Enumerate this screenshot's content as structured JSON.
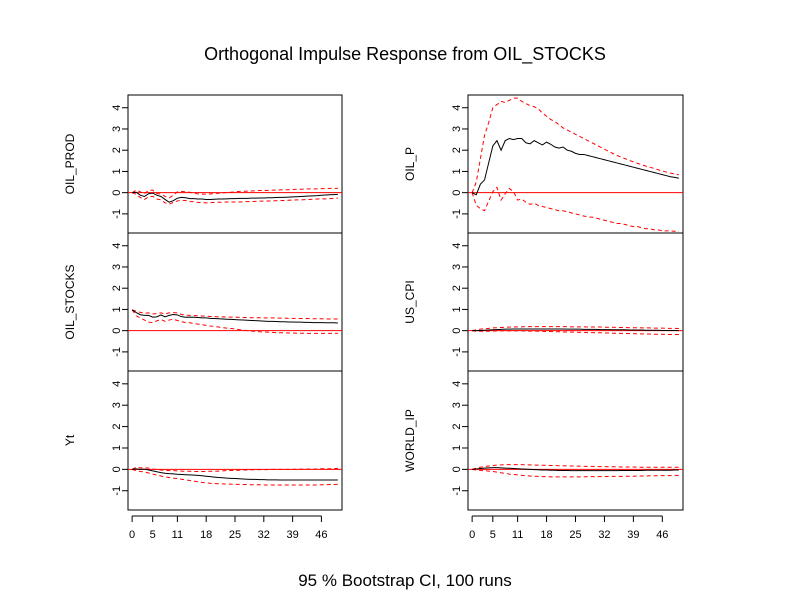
{
  "title": "Orthogonal Impulse Response from OIL_STOCKS",
  "subtitle": "95 % Bootstrap CI,  100 runs",
  "colors": {
    "ci": "#ff0000",
    "zero_line": "#ff0000",
    "response": "#000000",
    "frame": "#000000"
  },
  "chart_data": {
    "type": "line",
    "impulse": "OIL_STOCKS",
    "x": [
      0,
      1,
      2,
      3,
      4,
      5,
      6,
      7,
      8,
      9,
      10,
      11,
      12,
      13,
      14,
      15,
      16,
      17,
      18,
      19,
      20,
      21,
      22,
      23,
      24,
      25,
      26,
      27,
      28,
      29,
      30,
      31,
      32,
      33,
      34,
      35,
      36,
      37,
      38,
      39,
      40,
      41,
      42,
      43,
      44,
      45,
      46,
      47,
      48,
      49,
      50
    ],
    "x_ticks": [
      0,
      5,
      11,
      18,
      25,
      32,
      39,
      46
    ],
    "xlim": [
      -1.0,
      51.0
    ],
    "ylim": [
      -1.9,
      4.6
    ],
    "y_ticks": [
      -1,
      0,
      1,
      2,
      3,
      4
    ],
    "reference_line": 0,
    "panels": [
      {
        "name": "OIL_PROD",
        "response": [
          0,
          0.02,
          -0.12,
          -0.18,
          -0.05,
          -0.02,
          -0.12,
          -0.18,
          -0.32,
          -0.45,
          -0.38,
          -0.26,
          -0.22,
          -0.24,
          -0.28,
          -0.28,
          -0.3,
          -0.3,
          -0.32,
          -0.32,
          -0.31,
          -0.3,
          -0.3,
          -0.29,
          -0.28,
          -0.28,
          -0.27,
          -0.27,
          -0.27,
          -0.26,
          -0.26,
          -0.25,
          -0.25,
          -0.24,
          -0.24,
          -0.23,
          -0.22,
          -0.22,
          -0.21,
          -0.2,
          -0.19,
          -0.18,
          -0.17,
          -0.16,
          -0.15,
          -0.14,
          -0.12,
          -0.11,
          -0.1,
          -0.09,
          -0.08
        ],
        "lower": [
          0,
          -0.08,
          -0.23,
          -0.32,
          -0.2,
          -0.17,
          -0.3,
          -0.34,
          -0.48,
          -0.54,
          -0.46,
          -0.39,
          -0.36,
          -0.37,
          -0.42,
          -0.42,
          -0.46,
          -0.47,
          -0.48,
          -0.47,
          -0.46,
          -0.45,
          -0.45,
          -0.44,
          -0.44,
          -0.44,
          -0.44,
          -0.43,
          -0.42,
          -0.42,
          -0.41,
          -0.4,
          -0.4,
          -0.39,
          -0.39,
          -0.38,
          -0.37,
          -0.37,
          -0.36,
          -0.35,
          -0.34,
          -0.34,
          -0.33,
          -0.32,
          -0.31,
          -0.3,
          -0.29,
          -0.29,
          -0.28,
          -0.27,
          -0.26
        ],
        "upper": [
          0,
          0.12,
          0.04,
          -0.05,
          0.11,
          0.12,
          -0.04,
          -0.06,
          -0.18,
          -0.25,
          -0.12,
          0.04,
          0.06,
          0.04,
          0.02,
          -0.02,
          -0.06,
          -0.07,
          -0.07,
          -0.06,
          -0.04,
          -0.03,
          -0.01,
          0.01,
          0.02,
          0.04,
          0.06,
          0.06,
          0.07,
          0.08,
          0.09,
          0.1,
          0.1,
          0.11,
          0.12,
          0.12,
          0.13,
          0.14,
          0.14,
          0.15,
          0.16,
          0.16,
          0.17,
          0.18,
          0.18,
          0.18,
          0.19,
          0.19,
          0.2,
          0.2,
          0.2
        ]
      },
      {
        "name": "OIL_STOCKS",
        "response": [
          0.98,
          0.85,
          0.75,
          0.72,
          0.72,
          0.64,
          0.65,
          0.74,
          0.65,
          0.72,
          0.76,
          0.74,
          0.66,
          0.63,
          0.64,
          0.63,
          0.62,
          0.6,
          0.6,
          0.58,
          0.57,
          0.56,
          0.55,
          0.54,
          0.53,
          0.52,
          0.51,
          0.5,
          0.49,
          0.48,
          0.47,
          0.46,
          0.45,
          0.44,
          0.44,
          0.43,
          0.42,
          0.42,
          0.41,
          0.41,
          0.4,
          0.4,
          0.39,
          0.39,
          0.38,
          0.38,
          0.38,
          0.37,
          0.37,
          0.37,
          0.36
        ],
        "lower": [
          0.98,
          0.7,
          0.6,
          0.5,
          0.4,
          0.38,
          0.46,
          0.53,
          0.44,
          0.5,
          0.54,
          0.48,
          0.42,
          0.38,
          0.37,
          0.34,
          0.31,
          0.28,
          0.25,
          0.22,
          0.2,
          0.17,
          0.14,
          0.12,
          0.1,
          0.08,
          0.05,
          0.02,
          0.0,
          -0.02,
          -0.03,
          -0.05,
          -0.06,
          -0.07,
          -0.08,
          -0.09,
          -0.1,
          -0.1,
          -0.11,
          -0.11,
          -0.12,
          -0.12,
          -0.12,
          -0.13,
          -0.13,
          -0.13,
          -0.13,
          -0.13,
          -0.13,
          -0.13,
          -0.13
        ],
        "upper": [
          0.98,
          0.92,
          0.86,
          0.82,
          0.84,
          0.79,
          0.8,
          0.84,
          0.79,
          0.84,
          0.85,
          0.84,
          0.76,
          0.73,
          0.72,
          0.71,
          0.7,
          0.69,
          0.68,
          0.67,
          0.66,
          0.65,
          0.65,
          0.64,
          0.64,
          0.63,
          0.63,
          0.62,
          0.62,
          0.61,
          0.61,
          0.61,
          0.6,
          0.6,
          0.6,
          0.59,
          0.59,
          0.59,
          0.58,
          0.58,
          0.58,
          0.57,
          0.57,
          0.57,
          0.56,
          0.56,
          0.56,
          0.55,
          0.55,
          0.55,
          0.55
        ]
      },
      {
        "name": "Yt",
        "response": [
          0.0,
          0.02,
          0.0,
          0.01,
          -0.03,
          -0.07,
          -0.11,
          -0.15,
          -0.18,
          -0.2,
          -0.21,
          -0.23,
          -0.24,
          -0.25,
          -0.26,
          -0.27,
          -0.28,
          -0.3,
          -0.32,
          -0.34,
          -0.36,
          -0.38,
          -0.39,
          -0.41,
          -0.42,
          -0.43,
          -0.44,
          -0.45,
          -0.46,
          -0.47,
          -0.47,
          -0.48,
          -0.48,
          -0.49,
          -0.49,
          -0.49,
          -0.5,
          -0.5,
          -0.5,
          -0.5,
          -0.5,
          -0.5,
          -0.5,
          -0.5,
          -0.5,
          -0.5,
          -0.5,
          -0.5,
          -0.5,
          -0.5,
          -0.5
        ],
        "lower": [
          0.0,
          -0.06,
          -0.1,
          -0.12,
          -0.17,
          -0.22,
          -0.27,
          -0.31,
          -0.35,
          -0.38,
          -0.41,
          -0.43,
          -0.46,
          -0.49,
          -0.52,
          -0.55,
          -0.58,
          -0.61,
          -0.63,
          -0.65,
          -0.66,
          -0.67,
          -0.68,
          -0.69,
          -0.69,
          -0.7,
          -0.7,
          -0.71,
          -0.71,
          -0.72,
          -0.72,
          -0.72,
          -0.73,
          -0.73,
          -0.73,
          -0.73,
          -0.73,
          -0.73,
          -0.73,
          -0.73,
          -0.73,
          -0.73,
          -0.73,
          -0.73,
          -0.73,
          -0.73,
          -0.72,
          -0.72,
          -0.71,
          -0.71,
          -0.7
        ],
        "upper": [
          0.0,
          0.1,
          0.07,
          0.08,
          0.06,
          0.02,
          -0.01,
          -0.03,
          -0.05,
          -0.06,
          -0.06,
          -0.07,
          -0.08,
          -0.09,
          -0.09,
          -0.1,
          -0.1,
          -0.1,
          -0.1,
          -0.09,
          -0.09,
          -0.08,
          -0.07,
          -0.06,
          -0.05,
          -0.05,
          -0.04,
          -0.03,
          -0.03,
          -0.02,
          -0.02,
          -0.01,
          -0.01,
          -0.01,
          0.0,
          0.0,
          0.0,
          0.0,
          0.0,
          0.0,
          0.01,
          0.01,
          0.01,
          0.02,
          0.02,
          0.02,
          0.03,
          0.03,
          0.03,
          0.04,
          0.04
        ]
      },
      {
        "name": "OIL_P",
        "response": [
          0.0,
          -0.1,
          0.4,
          0.6,
          1.4,
          2.2,
          2.45,
          2.0,
          2.45,
          2.55,
          2.5,
          2.55,
          2.55,
          2.35,
          2.3,
          2.45,
          2.35,
          2.25,
          2.38,
          2.28,
          2.15,
          2.1,
          2.15,
          2.0,
          1.95,
          1.85,
          1.8,
          1.8,
          1.75,
          1.7,
          1.65,
          1.6,
          1.55,
          1.5,
          1.45,
          1.4,
          1.35,
          1.3,
          1.25,
          1.2,
          1.15,
          1.1,
          1.05,
          1.0,
          0.95,
          0.9,
          0.85,
          0.8,
          0.75,
          0.72,
          0.68
        ],
        "lower": [
          0.0,
          -0.6,
          -0.75,
          -0.85,
          -0.4,
          0.05,
          0.25,
          -0.35,
          -0.05,
          0.2,
          0.05,
          -0.35,
          -0.3,
          -0.45,
          -0.55,
          -0.5,
          -0.6,
          -0.65,
          -0.7,
          -0.75,
          -0.8,
          -0.85,
          -0.85,
          -0.9,
          -0.95,
          -1.0,
          -1.05,
          -1.1,
          -1.15,
          -1.15,
          -1.2,
          -1.25,
          -1.3,
          -1.35,
          -1.4,
          -1.45,
          -1.45,
          -1.5,
          -1.55,
          -1.6,
          -1.6,
          -1.65,
          -1.7,
          -1.7,
          -1.75,
          -1.75,
          -1.8,
          -1.8,
          -1.8,
          -1.82,
          -1.82
        ],
        "upper": [
          0.0,
          0.5,
          1.6,
          2.7,
          3.3,
          4.0,
          4.15,
          4.3,
          4.25,
          4.35,
          4.45,
          4.45,
          4.3,
          4.2,
          4.1,
          4.05,
          3.95,
          3.75,
          3.6,
          3.45,
          3.35,
          3.2,
          3.05,
          2.95,
          2.85,
          2.75,
          2.65,
          2.55,
          2.45,
          2.35,
          2.25,
          2.15,
          2.05,
          1.95,
          1.85,
          1.75,
          1.68,
          1.6,
          1.52,
          1.45,
          1.38,
          1.32,
          1.25,
          1.2,
          1.14,
          1.08,
          1.02,
          0.97,
          0.92,
          0.88,
          0.84
        ]
      },
      {
        "name": "US_CPI",
        "response": [
          0.0,
          0.0,
          0.01,
          0.02,
          0.03,
          0.04,
          0.05,
          0.06,
          0.07,
          0.07,
          0.08,
          0.08,
          0.08,
          0.08,
          0.08,
          0.08,
          0.08,
          0.08,
          0.08,
          0.08,
          0.08,
          0.08,
          0.08,
          0.07,
          0.07,
          0.07,
          0.07,
          0.06,
          0.06,
          0.06,
          0.06,
          0.05,
          0.05,
          0.05,
          0.04,
          0.04,
          0.04,
          0.04,
          0.03,
          0.03,
          0.03,
          0.03,
          0.02,
          0.02,
          0.02,
          0.02,
          0.01,
          0.01,
          0.01,
          0.01,
          0.0
        ],
        "lower": [
          0.0,
          -0.03,
          -0.03,
          -0.03,
          -0.02,
          -0.02,
          -0.01,
          -0.01,
          -0.01,
          -0.01,
          -0.01,
          -0.01,
          -0.01,
          -0.02,
          -0.02,
          -0.02,
          -0.03,
          -0.03,
          -0.04,
          -0.04,
          -0.05,
          -0.05,
          -0.06,
          -0.06,
          -0.07,
          -0.07,
          -0.08,
          -0.08,
          -0.09,
          -0.09,
          -0.1,
          -0.1,
          -0.11,
          -0.11,
          -0.12,
          -0.12,
          -0.13,
          -0.13,
          -0.14,
          -0.14,
          -0.15,
          -0.15,
          -0.16,
          -0.16,
          -0.17,
          -0.17,
          -0.17,
          -0.18,
          -0.18,
          -0.18,
          -0.18
        ],
        "upper": [
          0.0,
          0.04,
          0.07,
          0.09,
          0.11,
          0.13,
          0.14,
          0.15,
          0.16,
          0.17,
          0.17,
          0.18,
          0.18,
          0.19,
          0.19,
          0.19,
          0.19,
          0.19,
          0.19,
          0.19,
          0.19,
          0.19,
          0.19,
          0.19,
          0.18,
          0.18,
          0.18,
          0.18,
          0.17,
          0.17,
          0.17,
          0.17,
          0.16,
          0.16,
          0.16,
          0.15,
          0.15,
          0.15,
          0.14,
          0.14,
          0.14,
          0.13,
          0.13,
          0.13,
          0.12,
          0.12,
          0.12,
          0.11,
          0.11,
          0.11,
          0.1
        ]
      },
      {
        "name": "WORLD_IP",
        "response": [
          0.0,
          0.02,
          0.04,
          0.06,
          0.07,
          0.08,
          0.08,
          0.07,
          0.06,
          0.05,
          0.04,
          0.03,
          0.02,
          0.01,
          0.0,
          -0.01,
          -0.02,
          -0.03,
          -0.03,
          -0.04,
          -0.04,
          -0.05,
          -0.05,
          -0.05,
          -0.06,
          -0.06,
          -0.06,
          -0.06,
          -0.06,
          -0.06,
          -0.06,
          -0.06,
          -0.06,
          -0.06,
          -0.06,
          -0.06,
          -0.05,
          -0.05,
          -0.05,
          -0.05,
          -0.05,
          -0.05,
          -0.04,
          -0.04,
          -0.04,
          -0.04,
          -0.04,
          -0.04,
          -0.04,
          -0.03,
          -0.03
        ],
        "lower": [
          0.0,
          -0.03,
          -0.05,
          -0.06,
          -0.08,
          -0.1,
          -0.13,
          -0.16,
          -0.19,
          -0.22,
          -0.24,
          -0.26,
          -0.28,
          -0.3,
          -0.31,
          -0.32,
          -0.33,
          -0.34,
          -0.34,
          -0.35,
          -0.35,
          -0.35,
          -0.35,
          -0.35,
          -0.35,
          -0.35,
          -0.35,
          -0.35,
          -0.34,
          -0.34,
          -0.34,
          -0.34,
          -0.34,
          -0.33,
          -0.33,
          -0.33,
          -0.33,
          -0.32,
          -0.32,
          -0.32,
          -0.31,
          -0.31,
          -0.31,
          -0.3,
          -0.3,
          -0.3,
          -0.29,
          -0.29,
          -0.29,
          -0.28,
          -0.28
        ],
        "upper": [
          0.0,
          0.06,
          0.1,
          0.13,
          0.16,
          0.18,
          0.2,
          0.21,
          0.22,
          0.22,
          0.22,
          0.22,
          0.22,
          0.21,
          0.21,
          0.2,
          0.2,
          0.19,
          0.19,
          0.18,
          0.18,
          0.17,
          0.17,
          0.16,
          0.16,
          0.15,
          0.15,
          0.14,
          0.14,
          0.14,
          0.13,
          0.13,
          0.13,
          0.12,
          0.12,
          0.12,
          0.11,
          0.11,
          0.11,
          0.11,
          0.1,
          0.1,
          0.1,
          0.1,
          0.1,
          0.1,
          0.1,
          0.1,
          0.1,
          0.1,
          0.1
        ]
      }
    ]
  }
}
